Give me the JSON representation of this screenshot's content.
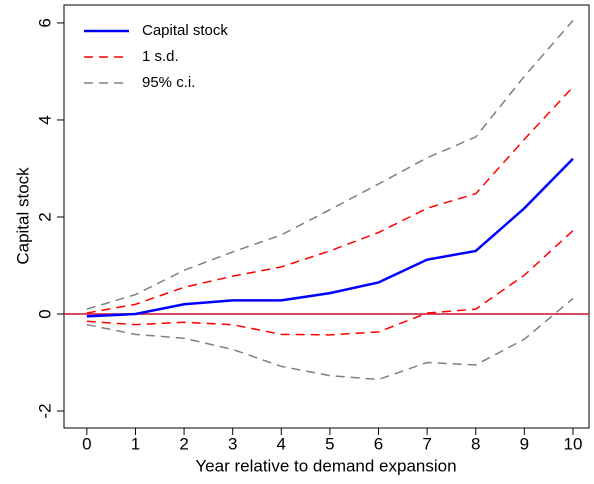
{
  "chart_data": {
    "type": "line",
    "x_label": "Year relative to demand expansion",
    "y_label": "Capital stock",
    "x": [
      0,
      1,
      2,
      3,
      4,
      5,
      6,
      7,
      8,
      9,
      10
    ],
    "series": [
      {
        "name": "Capital stock",
        "color": "#0000ff",
        "dashed": false,
        "values": [
          -0.05,
          0.0,
          0.2,
          0.28,
          0.28,
          0.43,
          0.65,
          1.12,
          1.3,
          2.18,
          3.2
        ]
      },
      {
        "name": "1 s.d.",
        "color": "#ff0000",
        "dashed": true,
        "upper": [
          0.02,
          0.2,
          0.55,
          0.78,
          0.97,
          1.3,
          1.68,
          2.18,
          2.48,
          3.6,
          4.68
        ],
        "lower": [
          -0.15,
          -0.22,
          -0.17,
          -0.22,
          -0.42,
          -0.43,
          -0.37,
          0.02,
          0.1,
          0.8,
          1.72
        ]
      },
      {
        "name": "95% c.i.",
        "color": "#808080",
        "dashed": true,
        "upper": [
          0.1,
          0.4,
          0.9,
          1.28,
          1.63,
          2.15,
          2.68,
          3.22,
          3.65,
          4.9,
          6.05
        ],
        "lower": [
          -0.22,
          -0.42,
          -0.5,
          -0.73,
          -1.08,
          -1.27,
          -1.35,
          -1.0,
          -1.05,
          -0.52,
          0.32
        ]
      }
    ],
    "hline": 0,
    "hline_color": "#cc1133",
    "xlim": [
      -0.47,
      10.33
    ],
    "xticks": [
      0,
      1,
      2,
      3,
      4,
      5,
      6,
      7,
      8,
      9,
      10
    ],
    "ylim": [
      -2.35,
      6.37
    ],
    "yticks": [
      -2,
      0,
      2,
      4,
      6
    ],
    "legend": "top-left"
  }
}
